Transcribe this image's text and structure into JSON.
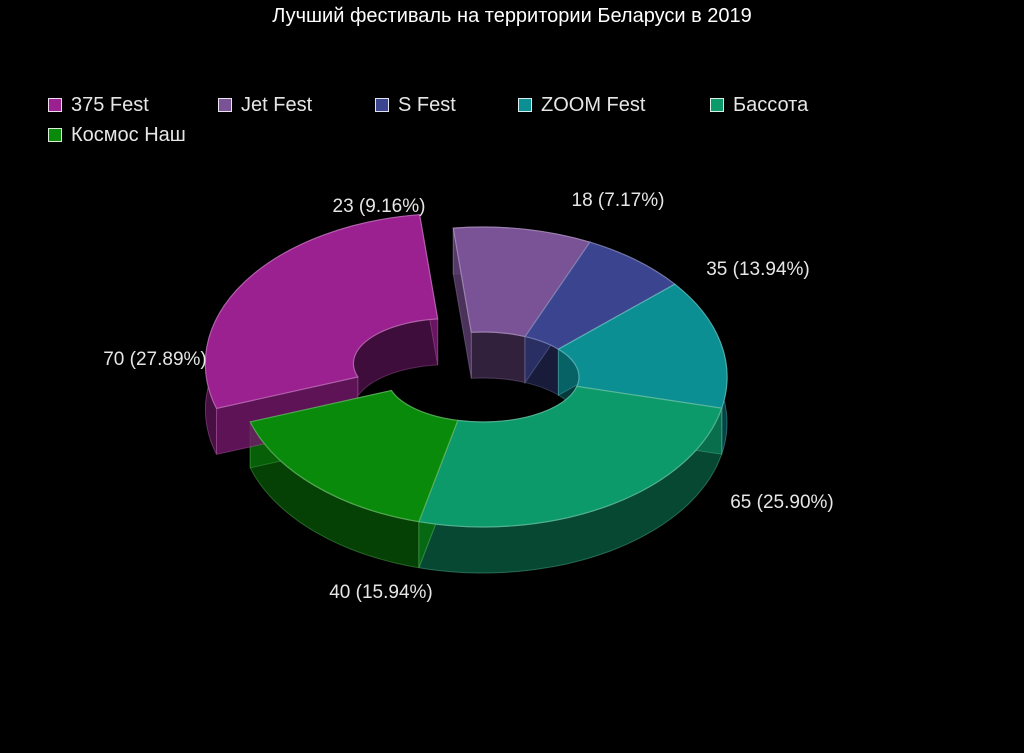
{
  "chart_data": {
    "type": "pie",
    "variant": "3d-donut-exploded",
    "title": "Лучший фестиваль на территории Беларуси в 2019",
    "slices": [
      {
        "label": "Jet Fest",
        "value": 23,
        "display": "23 (9.16%)",
        "color": "#7a5296"
      },
      {
        "label": "S Fest",
        "value": 18,
        "display": "18 (7.17%)",
        "color": "#3b448f"
      },
      {
        "label": "ZOOM Fest",
        "value": 35,
        "display": "35 (13.94%)",
        "color": "#0b8f93"
      },
      {
        "label": "Бассота",
        "value": 65,
        "display": "65 (25.90%)",
        "color": "#0c9a6a"
      },
      {
        "label": "Космос Наш",
        "value": 40,
        "display": "40 (15.94%)",
        "color": "#0a8a0a"
      },
      {
        "label": "375 Fest",
        "value": 70,
        "display": "70 (27.89%)",
        "color": "#9b2090",
        "exploded": true
      }
    ],
    "legend": {
      "placement": "top-left",
      "entries": [
        {
          "label": "375 Fest",
          "color": "#9b2090"
        },
        {
          "label": "Jet Fest",
          "color": "#7a5296"
        },
        {
          "label": "S Fest",
          "color": "#3b448f"
        },
        {
          "label": "ZOOM Fest",
          "color": "#0b8f93"
        },
        {
          "label": "Бассота",
          "color": "#0c9a6a"
        },
        {
          "label": "Космос Наш",
          "color": "#0a8a0a"
        }
      ]
    },
    "background": "#000000"
  }
}
